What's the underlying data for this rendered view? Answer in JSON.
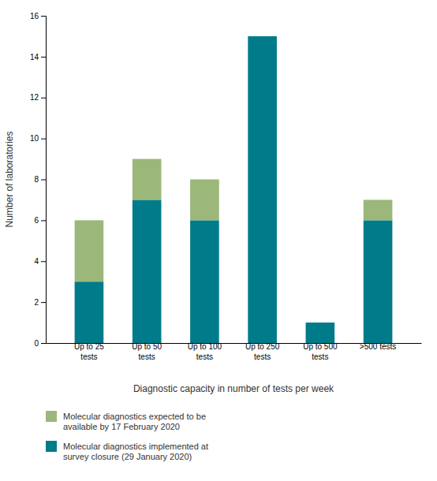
{
  "chart_data": {
    "type": "bar",
    "stacked": true,
    "categories": [
      "Up to 25\ntests",
      "Up to 50\ntests",
      "Up to 100\ntests",
      "Up to 250\ntests",
      "Up to 500\ntests",
      ">500 tests"
    ],
    "series": [
      {
        "name": "Molecular diagnostics implemented at\nsurvey closure (29 January 2020)",
        "color": "#007B8A",
        "values": [
          3,
          7,
          6,
          15,
          1,
          6
        ]
      },
      {
        "name": "Molecular diagnostics expected to be\navailable by 17 February 2020",
        "color": "#9BB87A",
        "values": [
          3,
          2,
          2,
          0,
          0,
          1
        ]
      }
    ],
    "xlabel": "Diagnostic capacity in number of tests per week",
    "ylabel": "Number of laboratories",
    "ylim": [
      0,
      16
    ],
    "yticks": [
      0,
      2,
      4,
      6,
      8,
      10,
      12,
      14,
      16
    ],
    "grid": false,
    "legend": "bottom"
  }
}
